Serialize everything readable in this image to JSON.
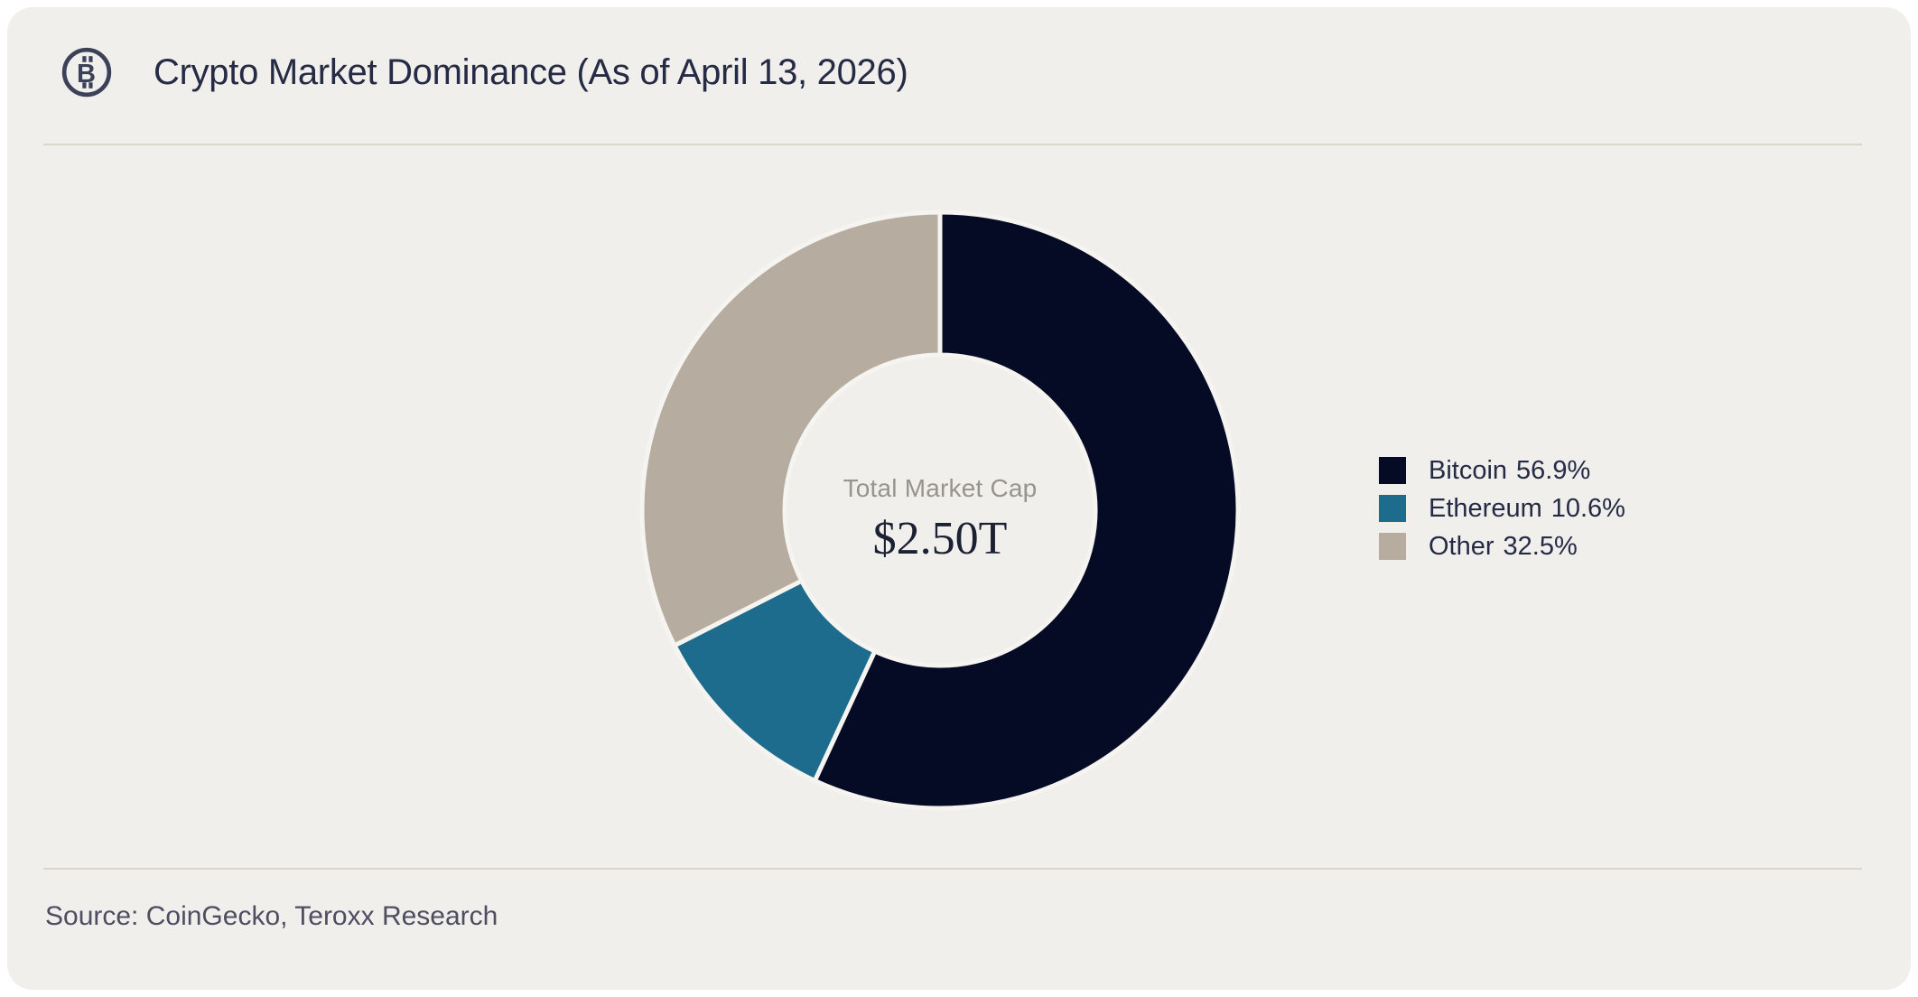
{
  "header": {
    "icon": "bitcoin-icon",
    "title": "Crypto Market Dominance (As of April 13, 2026)"
  },
  "footer": {
    "source": "Source: CoinGecko, Teroxx Research"
  },
  "chart_data": {
    "type": "pie",
    "subtype": "donut",
    "title": "Crypto Market Dominance (As of April 13, 2026)",
    "center_label": "Total Market Cap",
    "center_value": "$2.50T",
    "start_angle_deg": 0,
    "direction": "clockwise",
    "legend_position": "right",
    "series": [
      {
        "name": "Bitcoin",
        "value_pct": 56.9,
        "label": "56.9%",
        "color": "#060b25"
      },
      {
        "name": "Ethereum",
        "value_pct": 10.6,
        "label": "10.6%",
        "color": "#1d6b8d"
      },
      {
        "name": "Other",
        "value_pct": 32.5,
        "label": "32.5%",
        "color": "#b6ac9f"
      }
    ]
  },
  "colors": {
    "page_bg": "#ffffff",
    "card_bg": "#f0efec",
    "divider": "#dcd5cb",
    "title_text": "#262b45",
    "icon": "#3c415a",
    "segment_gap": "#f5f4f1",
    "center_label_text": "#98948d",
    "center_value_text": "#1b2033",
    "footer_text": "#4f4d62"
  }
}
